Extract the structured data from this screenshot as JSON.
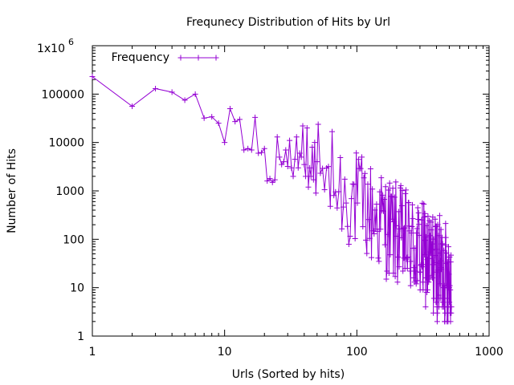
{
  "chart_data": {
    "type": "line",
    "title": "Frequnecy Distribution of Hits by Url",
    "xlabel": "Urls (Sorted by hits)",
    "ylabel": "Number of Hits",
    "x_scale": "log",
    "y_scale": "log",
    "xlim": [
      1,
      1000
    ],
    "ylim": [
      1,
      1000000
    ],
    "x_ticks": [
      {
        "value": 1,
        "label": "1"
      },
      {
        "value": 10,
        "label": "10"
      },
      {
        "value": 100,
        "label": "100"
      },
      {
        "value": 1000,
        "label": "1000"
      }
    ],
    "y_ticks": [
      {
        "value": 1,
        "label": "1"
      },
      {
        "value": 10,
        "label": "10"
      },
      {
        "value": 100,
        "label": "100"
      },
      {
        "value": 1000,
        "label": "1000"
      },
      {
        "value": 10000,
        "label": "10000"
      },
      {
        "value": 100000,
        "label": "100000"
      },
      {
        "value": 1000000,
        "label": "1x10",
        "exponent": "6"
      }
    ],
    "grid": false,
    "legend_position": "top-left",
    "marker": "plus",
    "series": [
      {
        "name": "Frequency",
        "color": "#9400d3",
        "head": [
          [
            1,
            230000
          ],
          [
            2,
            56000
          ],
          [
            3,
            130000
          ],
          [
            4,
            110000
          ],
          [
            5,
            75000
          ],
          [
            6,
            100000
          ],
          [
            7,
            32000
          ],
          [
            8,
            34000
          ],
          [
            9,
            25000
          ],
          [
            10,
            10000
          ],
          [
            11,
            50000
          ],
          [
            12,
            27000
          ],
          [
            13,
            30000
          ],
          [
            14,
            7000
          ],
          [
            15,
            7500
          ],
          [
            16,
            7000
          ],
          [
            17,
            33000
          ],
          [
            18,
            6000
          ],
          [
            19,
            6200
          ],
          [
            20,
            7500
          ],
          [
            21,
            1600
          ],
          [
            22,
            1800
          ],
          [
            23,
            1500
          ],
          [
            24,
            1700
          ],
          [
            25,
            13000
          ],
          [
            26,
            5000
          ],
          [
            27,
            3500
          ],
          [
            28,
            4000
          ],
          [
            29,
            7000
          ],
          [
            30,
            3200
          ],
          [
            31,
            11000
          ],
          [
            32,
            3000
          ],
          [
            33,
            2000
          ],
          [
            34,
            4500
          ],
          [
            35,
            13000
          ],
          [
            36,
            3000
          ],
          [
            37,
            6000
          ],
          [
            38,
            5000
          ],
          [
            39,
            22000
          ],
          [
            40,
            3500
          ],
          [
            41,
            2000
          ],
          [
            42,
            20000
          ],
          [
            43,
            1200
          ],
          [
            44,
            3000
          ],
          [
            45,
            2000
          ],
          [
            46,
            8000
          ],
          [
            47,
            1700
          ],
          [
            48,
            10000
          ],
          [
            49,
            900
          ],
          [
            50,
            4000
          ]
        ],
        "tail": {
          "x_start": 51,
          "x_end": 520,
          "step": 2,
          "log10_hits_start": 3.4,
          "log10_hits_end": 1.2,
          "log10_jitter": 1.1,
          "min_hits": 1
        }
      }
    ]
  }
}
